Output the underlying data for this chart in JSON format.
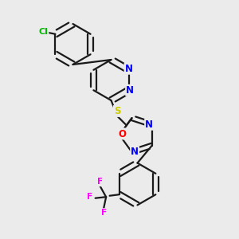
{
  "background_color": "#ebebeb",
  "bond_color": "#1a1a1a",
  "atom_colors": {
    "N": "#0000ff",
    "O": "#ff0000",
    "S": "#cccc00",
    "Cl": "#00bb00",
    "F": "#ff00ff",
    "C": "#1a1a1a"
  },
  "figsize": [
    3.0,
    3.0
  ],
  "dpi": 100
}
